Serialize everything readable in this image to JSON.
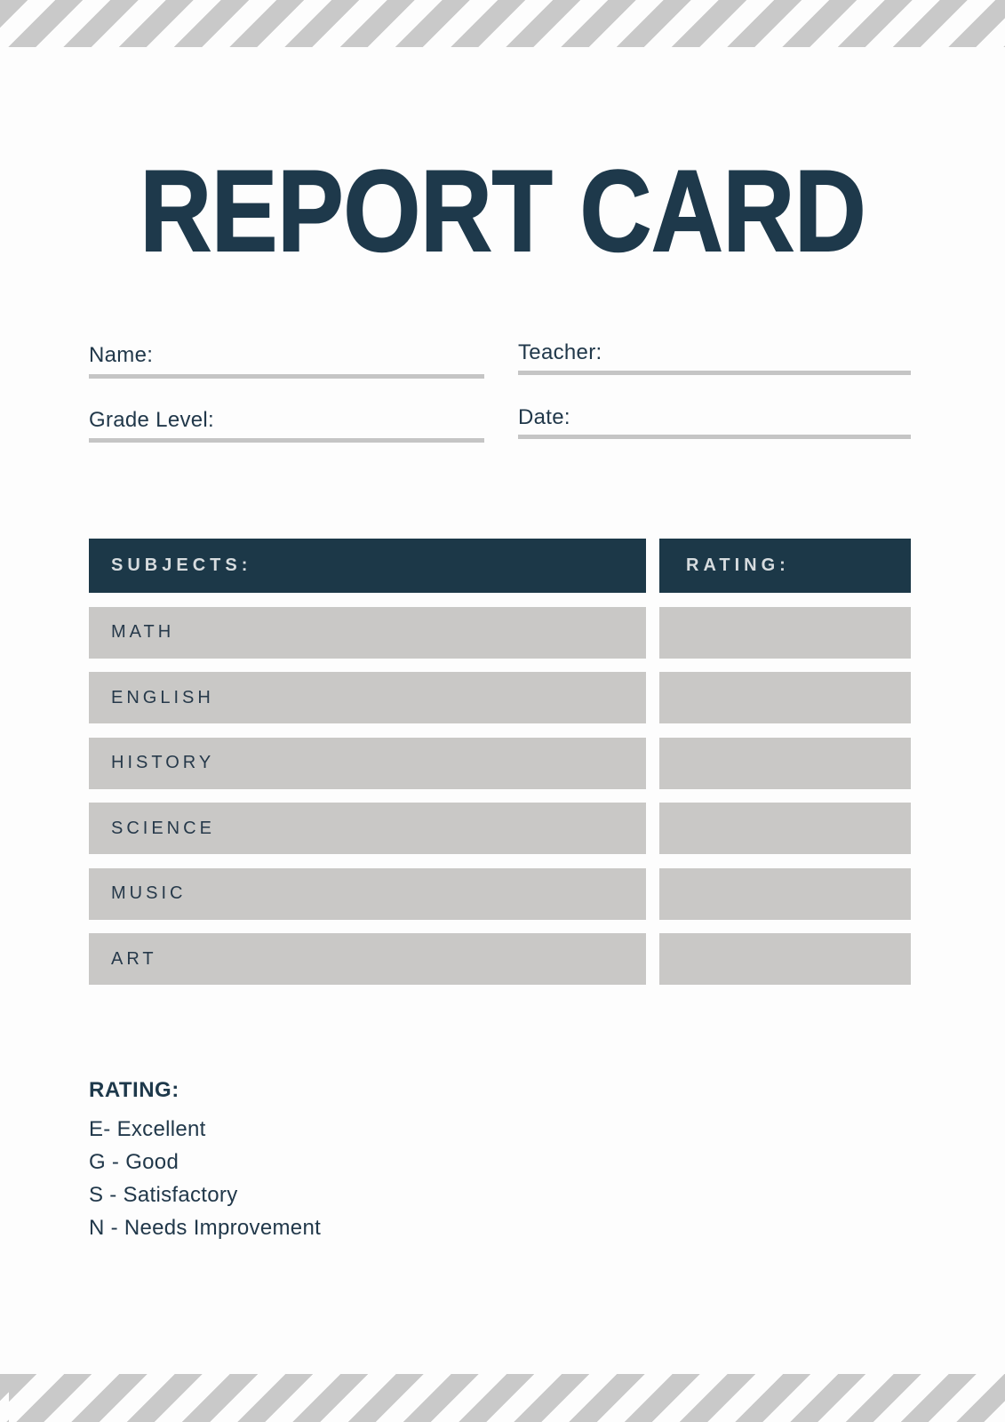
{
  "document": {
    "title": "REPORT CARD"
  },
  "fields": {
    "name": {
      "label": "Name:",
      "value": ""
    },
    "teacher": {
      "label": "Teacher:",
      "value": ""
    },
    "grade_level": {
      "label": "Grade Level:",
      "value": ""
    },
    "date": {
      "label": "Date:",
      "value": ""
    }
  },
  "table": {
    "columns": {
      "subjects": "SUBJECTS:",
      "rating": "RATING:"
    },
    "rows": [
      {
        "subject": "MATH",
        "rating": ""
      },
      {
        "subject": "ENGLISH",
        "rating": ""
      },
      {
        "subject": "HISTORY",
        "rating": ""
      },
      {
        "subject": "SCIENCE",
        "rating": ""
      },
      {
        "subject": "MUSIC",
        "rating": ""
      },
      {
        "subject": "ART",
        "rating": ""
      }
    ]
  },
  "legend": {
    "heading": "RATING:",
    "items": [
      "E- Excellent",
      "G - Good",
      "S - Satisfactory",
      "N - Needs Improvement"
    ]
  },
  "colors": {
    "navy": "#1c3848",
    "title_navy": "#1e394b",
    "row_gray": "#c9c8c6",
    "stripe_gray": "#c9c9c9",
    "underline_gray": "#c5c5c5",
    "header_text": "#d7dcdf",
    "background": "#fdfdfd"
  }
}
